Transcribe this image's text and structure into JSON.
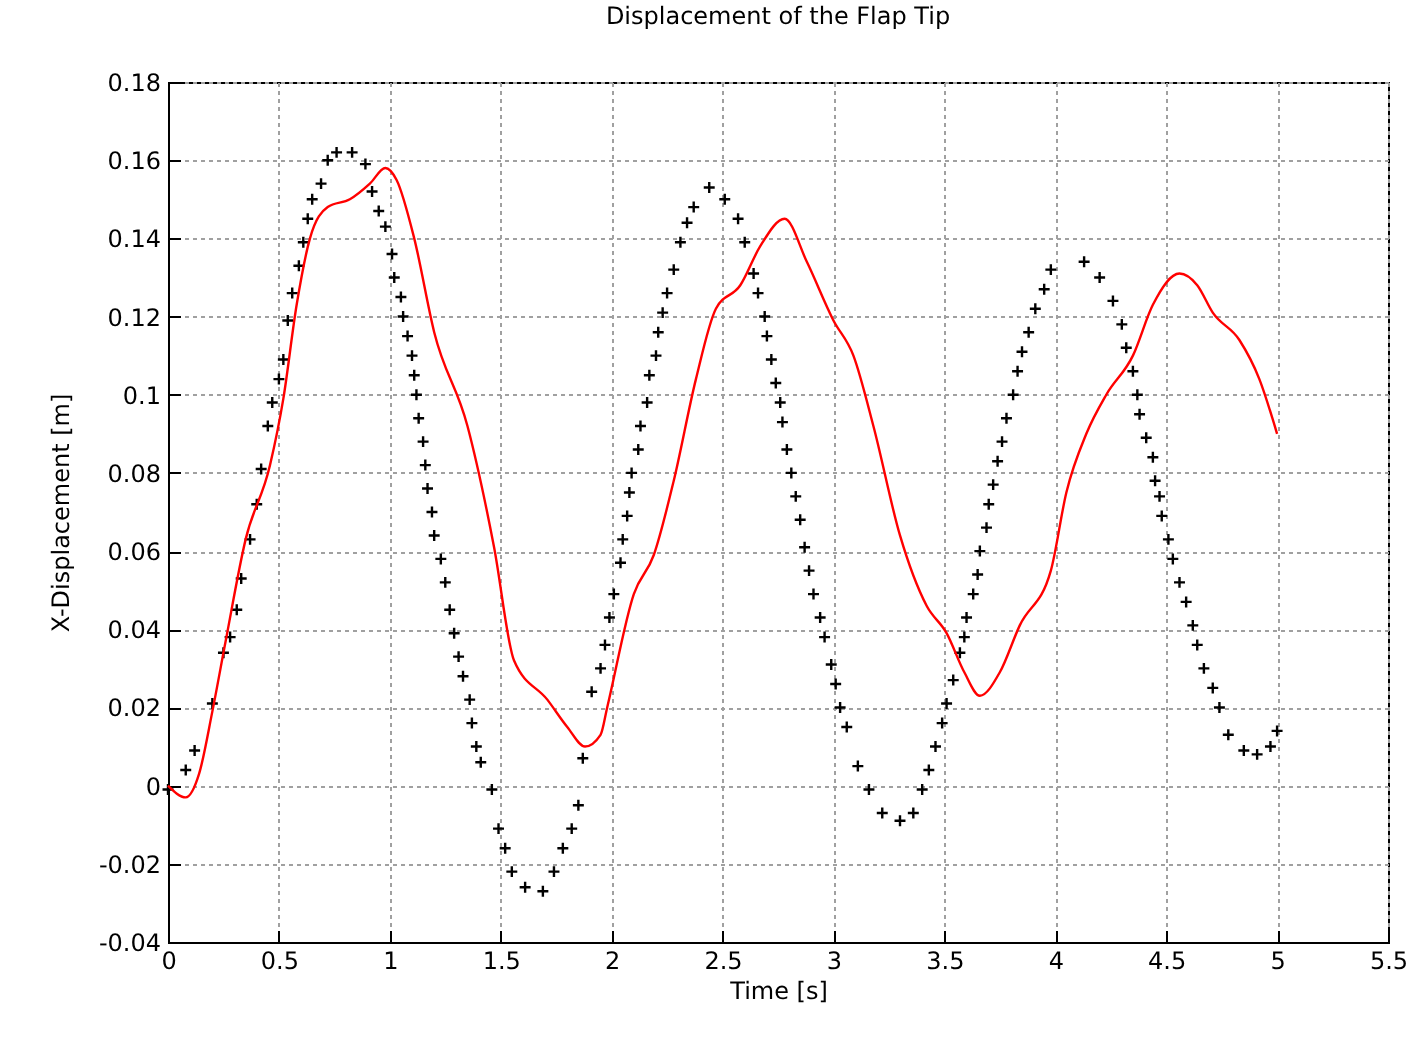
{
  "chart_data": {
    "type": "line",
    "title": "Displacement of the Flap Tip",
    "xlabel": "Time [s]",
    "ylabel": "X-Displacement [m]",
    "xlim": [
      0,
      5.5
    ],
    "xticks": [
      0,
      0.5,
      1,
      1.5,
      2,
      2.5,
      3,
      3.5,
      4,
      4.5,
      5,
      5.5
    ],
    "ylim": [
      -0.04,
      0.18
    ],
    "yticks": [
      -0.04,
      -0.02,
      0,
      0.02,
      0.04,
      0.06,
      0.08,
      0.1,
      0.12,
      0.14,
      0.16,
      0.18
    ],
    "grid": true,
    "legend": false,
    "series": [
      {
        "type": "scatter",
        "marker": "cross",
        "color": "#000000",
        "x": [
          0,
          0.08,
          0.12,
          0.2,
          0.25,
          0.28,
          0.31,
          0.33,
          0.37,
          0.4,
          0.42,
          0.45,
          0.47,
          0.5,
          0.52,
          0.54,
          0.56,
          0.59,
          0.61,
          0.63,
          0.65,
          0.69,
          0.72,
          0.76,
          0.83,
          0.89,
          0.92,
          0.95,
          0.98,
          1.01,
          1.02,
          1.05,
          1.06,
          1.08,
          1.1,
          1.11,
          1.12,
          1.13,
          1.15,
          1.16,
          1.17,
          1.19,
          1.2,
          1.23,
          1.25,
          1.27,
          1.29,
          1.31,
          1.33,
          1.36,
          1.37,
          1.39,
          1.41,
          1.46,
          1.49,
          1.52,
          1.55,
          1.61,
          1.69,
          1.74,
          1.78,
          1.82,
          1.85,
          1.87,
          1.91,
          1.95,
          1.97,
          1.99,
          2.01,
          2.04,
          2.05,
          2.07,
          2.08,
          2.09,
          2.12,
          2.13,
          2.16,
          2.17,
          2.2,
          2.21,
          2.23,
          2.25,
          2.28,
          2.31,
          2.34,
          2.37,
          2.44,
          2.51,
          2.57,
          2.6,
          2.64,
          2.66,
          2.69,
          2.7,
          2.72,
          2.74,
          2.76,
          2.77,
          2.79,
          2.81,
          2.83,
          2.85,
          2.87,
          2.89,
          2.91,
          2.94,
          2.96,
          2.99,
          3.01,
          3.03,
          3.06,
          3.11,
          3.16,
          3.22,
          3.3,
          3.36,
          3.4,
          3.43,
          3.46,
          3.49,
          3.51,
          3.54,
          3.57,
          3.59,
          3.6,
          3.63,
          3.65,
          3.66,
          3.69,
          3.7,
          3.72,
          3.74,
          3.76,
          3.78,
          3.81,
          3.83,
          3.85,
          3.88,
          3.91,
          3.95,
          3.98,
          4.13,
          4.2,
          4.26,
          4.3,
          4.32,
          4.35,
          4.37,
          4.38,
          4.41,
          4.44,
          4.45,
          4.47,
          4.48,
          4.51,
          4.53,
          4.56,
          4.59,
          4.62,
          4.64,
          4.67,
          4.71,
          4.74,
          4.78,
          4.85,
          4.91,
          4.97,
          5.0
        ],
        "values": [
          -0.001,
          0.004,
          0.009,
          0.021,
          0.034,
          0.038,
          0.045,
          0.053,
          0.063,
          0.072,
          0.081,
          0.092,
          0.098,
          0.104,
          0.109,
          0.119,
          0.126,
          0.133,
          0.139,
          0.145,
          0.15,
          0.154,
          0.16,
          0.162,
          0.162,
          0.159,
          0.152,
          0.147,
          0.143,
          0.136,
          0.13,
          0.125,
          0.12,
          0.115,
          0.11,
          0.105,
          0.1,
          0.094,
          0.088,
          0.082,
          0.076,
          0.07,
          0.064,
          0.058,
          0.052,
          0.045,
          0.039,
          0.033,
          0.028,
          0.022,
          0.016,
          0.01,
          0.006,
          -0.001,
          -0.011,
          -0.016,
          -0.022,
          -0.026,
          -0.027,
          -0.022,
          -0.016,
          -0.011,
          -0.005,
          0.007,
          0.024,
          0.03,
          0.036,
          0.043,
          0.049,
          0.057,
          0.063,
          0.069,
          0.075,
          0.08,
          0.086,
          0.092,
          0.098,
          0.105,
          0.11,
          0.116,
          0.121,
          0.126,
          0.132,
          0.139,
          0.144,
          0.148,
          0.153,
          0.15,
          0.145,
          0.139,
          0.131,
          0.126,
          0.12,
          0.115,
          0.109,
          0.103,
          0.098,
          0.093,
          0.086,
          0.08,
          0.074,
          0.068,
          0.061,
          0.055,
          0.049,
          0.043,
          0.038,
          0.031,
          0.026,
          0.02,
          0.015,
          0.005,
          -0.001,
          -0.007,
          -0.009,
          -0.007,
          -0.001,
          0.004,
          0.01,
          0.016,
          0.021,
          0.027,
          0.034,
          0.038,
          0.043,
          0.049,
          0.054,
          0.06,
          0.066,
          0.072,
          0.077,
          0.083,
          0.088,
          0.094,
          0.1,
          0.106,
          0.111,
          0.116,
          0.122,
          0.127,
          0.132,
          0.134,
          0.13,
          0.124,
          0.118,
          0.112,
          0.106,
          0.1,
          0.095,
          0.089,
          0.084,
          0.078,
          0.074,
          0.069,
          0.063,
          0.058,
          0.052,
          0.047,
          0.041,
          0.036,
          0.03,
          0.025,
          0.02,
          0.013,
          0.009,
          0.008,
          0.01,
          0.014
        ]
      },
      {
        "marker": "none",
        "color": "#ff0000",
        "x": [
          0,
          0.08,
          0.14,
          0.2,
          0.26,
          0.35,
          0.46,
          0.52,
          0.58,
          0.64,
          0.72,
          0.82,
          0.91,
          0.98,
          1.03,
          1.11,
          1.2,
          1.35,
          1.47,
          1.56,
          1.71,
          1.8,
          1.88,
          1.95,
          1.98,
          2.1,
          2.19,
          2.28,
          2.38,
          2.47,
          2.58,
          2.67,
          2.78,
          2.88,
          3.0,
          3.09,
          3.18,
          3.3,
          3.42,
          3.51,
          3.59,
          3.66,
          3.75,
          3.84,
          3.98,
          4.05,
          4.14,
          4.23,
          4.35,
          4.44,
          4.56,
          4.64,
          4.71,
          4.83,
          4.92,
          5.0
        ],
        "values": [
          0,
          -0.003,
          0.003,
          0.019,
          0.037,
          0.063,
          0.082,
          0.099,
          0.123,
          0.14,
          0.148,
          0.15,
          0.154,
          0.158,
          0.155,
          0.14,
          0.116,
          0.092,
          0.061,
          0.032,
          0.022,
          0.015,
          0.01,
          0.013,
          0.02,
          0.049,
          0.059,
          0.078,
          0.104,
          0.122,
          0.128,
          0.138,
          0.145,
          0.134,
          0.119,
          0.11,
          0.092,
          0.064,
          0.046,
          0.039,
          0.029,
          0.023,
          0.029,
          0.041,
          0.055,
          0.075,
          0.09,
          0.1,
          0.11,
          0.123,
          0.131,
          0.128,
          0.121,
          0.114,
          0.104,
          0.09
        ]
      }
    ]
  }
}
